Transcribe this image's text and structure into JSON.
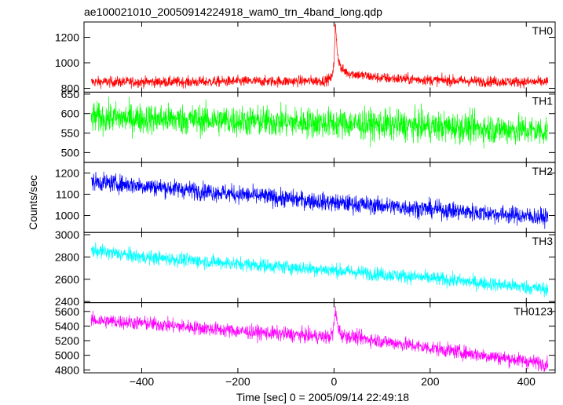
{
  "chart_data": {
    "type": "line",
    "title": "ae100021010_20050914224918_wam0_trn_4band_long.qdp",
    "ylabel": "Counts/sec",
    "xlabel": "Time [sec] 0 = 2005/09/14 22:49:18",
    "xlim": [
      -520,
      460
    ],
    "x_ticks": [
      -400,
      -200,
      0,
      200,
      400
    ],
    "x_tick_labels": [
      "−400",
      "−200",
      "0",
      "200",
      "400"
    ],
    "x_range": [
      -505,
      445
    ],
    "grid": false,
    "panels": [
      {
        "name": "TH0",
        "color": "#ff0000",
        "ylim": [
          770,
          1320
        ],
        "yticks": [
          800,
          1000,
          1200
        ],
        "ytick_labels": [
          "800",
          "1000",
          "1200"
        ],
        "x": [
          -505,
          -400,
          -300,
          -200,
          -100,
          -20,
          -5,
          0,
          3,
          8,
          15,
          30,
          60,
          100,
          200,
          300,
          400,
          445
        ],
        "y": [
          850,
          850,
          850,
          855,
          855,
          860,
          880,
          1000,
          1300,
          1050,
          950,
          920,
          900,
          880,
          865,
          855,
          850,
          850
        ],
        "noise": 30
      },
      {
        "name": "TH1",
        "color": "#00ff00",
        "ylim": [
          475,
          655
        ],
        "yticks": [
          500,
          550,
          600,
          650
        ],
        "ytick_labels": [
          "500",
          "550",
          "600",
          "650"
        ],
        "x": [
          -505,
          -250,
          0,
          250,
          445
        ],
        "y": [
          590,
          583,
          575,
          565,
          555
        ],
        "noise": 28
      },
      {
        "name": "TH2",
        "color": "#0000ff",
        "ylim": [
          920,
          1250
        ],
        "yticks": [
          1000,
          1100,
          1200
        ],
        "ytick_labels": [
          "1000",
          "1100",
          "1200"
        ],
        "x": [
          -505,
          -400,
          -200,
          0,
          200,
          445
        ],
        "y": [
          1160,
          1140,
          1100,
          1060,
          1030,
          990
        ],
        "noise": 30
      },
      {
        "name": "TH3",
        "color": "#00ffff",
        "ylim": [
          2390,
          3020
        ],
        "yticks": [
          2400,
          2600,
          2800,
          3000
        ],
        "ytick_labels": [
          "2400",
          "2600",
          "2800",
          "3000"
        ],
        "x": [
          -505,
          -400,
          -200,
          0,
          200,
          445
        ],
        "y": [
          2860,
          2800,
          2740,
          2680,
          2610,
          2510
        ],
        "noise": 45
      },
      {
        "name": "TH0123",
        "color": "#ff00ff",
        "ylim": [
          4760,
          5720
        ],
        "yticks": [
          4800,
          5000,
          5200,
          5400,
          5600
        ],
        "ytick_labels": [
          "4800",
          "5000",
          "5200",
          "5400",
          "5600"
        ],
        "x": [
          -505,
          -400,
          -200,
          -10,
          -2,
          0,
          3,
          8,
          15,
          40,
          200,
          445
        ],
        "y": [
          5480,
          5440,
          5330,
          5250,
          5300,
          5450,
          5600,
          5400,
          5280,
          5250,
          5100,
          4880
        ],
        "noise": 70
      }
    ]
  }
}
